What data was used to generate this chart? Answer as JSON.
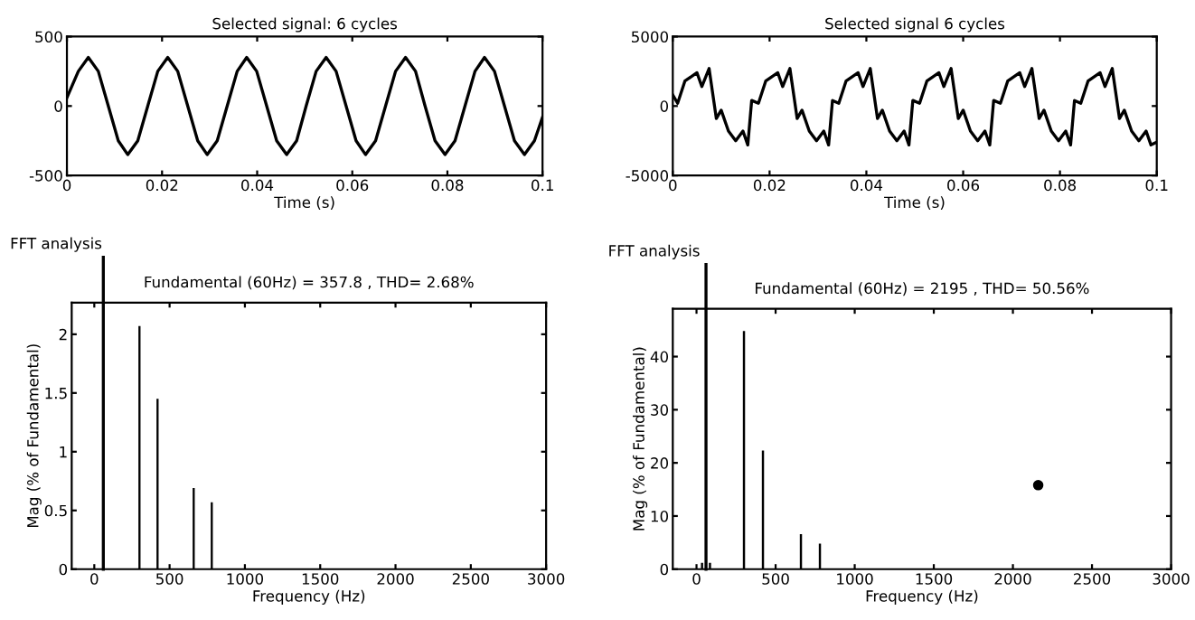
{
  "chart_data": [
    {
      "type": "line",
      "title": "Selected signal: 6 cycles",
      "xlabel": "Time (s)",
      "xlim": [
        0,
        0.1
      ],
      "xticks": [
        0,
        0.02,
        0.04,
        0.06,
        0.08,
        0.1
      ],
      "ylim": [
        -500,
        500
      ],
      "yticks": [
        -500,
        0,
        500
      ],
      "grid": false,
      "series": [
        {
          "color": "#000000",
          "x": [
            0,
            0.0024,
            0.0045,
            0.0066,
            0.0087,
            0.0108,
            0.0128,
            0.0149,
            0.017,
            0.0191,
            0.0212,
            0.0233,
            0.0254,
            0.0275,
            0.0295,
            0.0316,
            0.0337,
            0.0358,
            0.0378,
            0.0399,
            0.042,
            0.0441,
            0.0462,
            0.0483,
            0.0503,
            0.0524,
            0.0545,
            0.0566,
            0.0587,
            0.0608,
            0.0628,
            0.0649,
            0.067,
            0.0691,
            0.0712,
            0.0733,
            0.0753,
            0.0774,
            0.0795,
            0.0816,
            0.0837,
            0.0858,
            0.0878,
            0.0899,
            0.092,
            0.0941,
            0.0962,
            0.0983,
            0.1
          ],
          "values": [
            60,
            250,
            350,
            250,
            0,
            -250,
            -350,
            -250,
            0,
            250,
            350,
            250,
            0,
            -250,
            -350,
            -250,
            0,
            250,
            350,
            250,
            0,
            -250,
            -350,
            -250,
            0,
            250,
            350,
            250,
            0,
            -250,
            -350,
            -250,
            0,
            250,
            350,
            250,
            0,
            -250,
            -350,
            -250,
            0,
            250,
            350,
            250,
            0,
            -250,
            -350,
            -250,
            -80
          ]
        }
      ]
    },
    {
      "type": "line",
      "title": "Selected signal 6 cycles",
      "xlabel": "Time (s)",
      "xlim": [
        0,
        0.1
      ],
      "xticks": [
        0,
        0.02,
        0.04,
        0.06,
        0.08,
        0.1
      ],
      "ylim": [
        -5000,
        5000
      ],
      "yticks": [
        -5000,
        0,
        5000
      ],
      "grid": false,
      "series": [
        {
          "color": "#000000",
          "x": [
            0,
            0.001,
            0.0025,
            0.005,
            0.006,
            0.0075,
            0.009,
            0.01,
            0.0115,
            0.013,
            0.0145,
            0.0155,
            0.0163,
            0.0177,
            0.0192,
            0.0217,
            0.0227,
            0.0242,
            0.0257,
            0.0267,
            0.0282,
            0.0297,
            0.0312,
            0.0322,
            0.033,
            0.0343,
            0.0358,
            0.0383,
            0.0393,
            0.0408,
            0.0423,
            0.0433,
            0.0448,
            0.0463,
            0.0478,
            0.0488,
            0.0496,
            0.051,
            0.0525,
            0.055,
            0.056,
            0.0575,
            0.059,
            0.06,
            0.0615,
            0.063,
            0.0645,
            0.0655,
            0.0663,
            0.0677,
            0.0692,
            0.0717,
            0.0727,
            0.0742,
            0.0757,
            0.0767,
            0.0782,
            0.0797,
            0.0812,
            0.0822,
            0.083,
            0.0843,
            0.0858,
            0.0883,
            0.0893,
            0.0908,
            0.0923,
            0.0933,
            0.0948,
            0.0963,
            0.0978,
            0.0988,
            0.1
          ],
          "values": [
            800,
            200,
            1800,
            2400,
            1400,
            2700,
            -900,
            -300,
            -1800,
            -2500,
            -1800,
            -2800,
            400,
            200,
            1800,
            2400,
            1400,
            2700,
            -900,
            -300,
            -1800,
            -2500,
            -1800,
            -2800,
            400,
            200,
            1800,
            2400,
            1400,
            2700,
            -900,
            -300,
            -1800,
            -2500,
            -1800,
            -2800,
            400,
            200,
            1800,
            2400,
            1400,
            2700,
            -900,
            -300,
            -1800,
            -2500,
            -1800,
            -2800,
            400,
            200,
            1800,
            2400,
            1400,
            2700,
            -900,
            -300,
            -1800,
            -2500,
            -1800,
            -2800,
            400,
            200,
            1800,
            2400,
            1400,
            2700,
            -900,
            -300,
            -1800,
            -2500,
            -1800,
            -2800,
            -2600
          ]
        }
      ]
    },
    {
      "type": "bar",
      "title": "Fundamental (60Hz) = 357.8 , THD= 2.68%",
      "xlabel": "Frequency (Hz)",
      "ylabel": "Mag (% of Fundamental)",
      "annotations": [
        "FFT analysis"
      ],
      "xlim": [
        -150,
        3000
      ],
      "xticks": [
        0,
        500,
        1000,
        1500,
        2000,
        2500,
        3000
      ],
      "ylim": [
        0,
        2.27
      ],
      "yticks": [
        0,
        0.5,
        1,
        1.5,
        2
      ],
      "grid": false,
      "ref_lines": [
        {
          "axis": "x",
          "value": 60,
          "color": "#000000"
        }
      ],
      "series": [
        {
          "color": "#000000",
          "x": [
            300,
            420,
            660,
            780
          ],
          "values": [
            2.07,
            1.45,
            0.69,
            0.57
          ]
        }
      ]
    },
    {
      "type": "bar",
      "title": "Fundamental (60Hz) = 2195 , THD= 50.56%",
      "xlabel": "Frequency (Hz)",
      "ylabel": "Mag (% of Fundamental)",
      "annotations": [
        "FFT analysis"
      ],
      "xlim": [
        -150,
        3000
      ],
      "xticks": [
        0,
        500,
        1000,
        1500,
        2000,
        2500,
        3000
      ],
      "ylim": [
        0,
        49
      ],
      "yticks": [
        0,
        10,
        20,
        30,
        40
      ],
      "grid": false,
      "ref_lines": [
        {
          "axis": "x",
          "value": 60,
          "color": "#000000"
        }
      ],
      "series": [
        {
          "color": "#000000",
          "x": [
            35,
            85,
            300,
            420,
            660,
            780
          ],
          "values": [
            1.2,
            1.2,
            44.8,
            22.3,
            6.6,
            4.8
          ]
        },
        {
          "type": "scatter",
          "color": "#000000",
          "marker": "circle",
          "x": [
            2160
          ],
          "values": [
            15.8
          ]
        }
      ]
    }
  ]
}
